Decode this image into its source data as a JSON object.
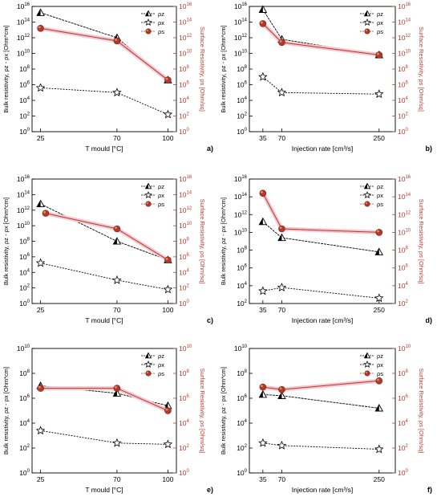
{
  "colors": {
    "series_z": "#000000",
    "series_x": "#000000",
    "series_s": "#b8392a",
    "right_axis": "#c0392b",
    "highlight": "#f3c7cf"
  },
  "chart_data": [
    {
      "type": "line",
      "panel_label": "a)",
      "xlabel": "T mould [°C]",
      "x_ticks": [
        25,
        70,
        100
      ],
      "xlim": [
        20,
        105
      ],
      "ylabel_left": "Bulk resistivity, ρz - ρx [Ohm*cm]",
      "ylabel_right": "Surface Resistivity, ρs [Ohm/sq]",
      "y_log": true,
      "y_ticks": [
        "10^0",
        "10^2",
        "10^4",
        "10^6",
        "10^8",
        "10^10",
        "10^12",
        "10^14",
        "10^16"
      ],
      "ylim_exp": [
        0,
        16
      ],
      "legend": [
        "ρz",
        "ρx",
        "ρs"
      ],
      "series": [
        {
          "name": "ρz",
          "marker": "triangle",
          "x": [
            25,
            70,
            100
          ],
          "log10_values": [
            15.2,
            12.0,
            6.6
          ]
        },
        {
          "name": "ρx",
          "marker": "star",
          "x": [
            25,
            70,
            100
          ],
          "log10_values": [
            5.6,
            5.0,
            2.2
          ]
        },
        {
          "name": "ρs",
          "marker": "circle",
          "x": [
            25,
            70,
            100
          ],
          "log10_values": [
            13.2,
            11.6,
            6.6
          ]
        }
      ]
    },
    {
      "type": "line",
      "panel_label": "b)",
      "xlabel": "Injection rate [cm³/s]",
      "x_ticks": [
        35,
        70,
        250
      ],
      "xlim": [
        10,
        280
      ],
      "ylabel_left": "Bulk resistivity, ρz - ρx [Ohm*cm]",
      "ylabel_right": "Surface Resistivity, ρs [Ohm/sq]",
      "y_log": true,
      "y_ticks": [
        "10^0",
        "10^2",
        "10^4",
        "10^6",
        "10^8",
        "10^10",
        "10^12",
        "10^14",
        "10^16"
      ],
      "ylim_exp": [
        0,
        16
      ],
      "legend": [
        "ρz",
        "ρx",
        "ρs"
      ],
      "series": [
        {
          "name": "ρz",
          "marker": "triangle",
          "x": [
            35,
            70,
            250
          ],
          "log10_values": [
            15.6,
            11.8,
            9.8
          ]
        },
        {
          "name": "ρx",
          "marker": "star",
          "x": [
            35,
            70,
            250
          ],
          "log10_values": [
            7.0,
            5.0,
            4.8
          ]
        },
        {
          "name": "ρs",
          "marker": "circle",
          "x": [
            35,
            70,
            250
          ],
          "log10_values": [
            13.8,
            11.4,
            9.8
          ]
        }
      ]
    },
    {
      "type": "line",
      "panel_label": "c)",
      "xlabel": "T mould [°C]",
      "x_ticks": [
        25,
        70,
        100
      ],
      "xlim": [
        20,
        105
      ],
      "ylabel_left": "Bulk resistivity, ρz - ρx [Ohm*cm]",
      "ylabel_right": "Surface Resistivity, ρs [Ohm/sq]",
      "y_log": true,
      "y_ticks": [
        "10^0",
        "10^2",
        "10^4",
        "10^6",
        "10^8",
        "10^10",
        "10^12",
        "10^14",
        "10^16"
      ],
      "ylim_exp": [
        0,
        16
      ],
      "legend": [
        "ρz",
        "ρx",
        "ρs"
      ],
      "series": [
        {
          "name": "ρz",
          "marker": "triangle",
          "x": [
            25,
            70,
            100
          ],
          "log10_values": [
            12.8,
            8.0,
            5.6
          ]
        },
        {
          "name": "ρx",
          "marker": "star",
          "x": [
            25,
            70,
            100
          ],
          "log10_values": [
            5.2,
            3.0,
            1.8
          ]
        },
        {
          "name": "ρs",
          "marker": "circle",
          "x": [
            28,
            70,
            100
          ],
          "log10_values": [
            11.6,
            9.6,
            5.6
          ]
        }
      ]
    },
    {
      "type": "line",
      "panel_label": "d)",
      "xlabel": "Injection rate [cm³/s]",
      "x_ticks": [
        35,
        70,
        250
      ],
      "xlim": [
        10,
        280
      ],
      "ylabel_left": "Bulk resistivity, ρz - ρx [Ohm*cm]",
      "ylabel_right": "Surface Resistivity, ρs [Ohm/sq]",
      "y_log": true,
      "y_ticks": [
        "10^2",
        "10^4",
        "10^6",
        "10^8",
        "10^10",
        "10^12",
        "10^14",
        "10^16"
      ],
      "ylim_exp": [
        2,
        16
      ],
      "legend": [
        "ρz",
        "ρx",
        "ρs"
      ],
      "series": [
        {
          "name": "ρz",
          "marker": "triangle",
          "x": [
            35,
            70,
            250
          ],
          "log10_values": [
            11.2,
            9.4,
            7.8
          ]
        },
        {
          "name": "ρx",
          "marker": "star",
          "x": [
            35,
            70,
            250
          ],
          "log10_values": [
            3.4,
            3.8,
            2.6
          ]
        },
        {
          "name": "ρs",
          "marker": "circle",
          "x": [
            35,
            70,
            250
          ],
          "log10_values": [
            14.4,
            10.4,
            10.0
          ]
        }
      ]
    },
    {
      "type": "line",
      "panel_label": "e)",
      "xlabel": "T mould [°C]",
      "x_ticks": [
        25,
        70,
        100
      ],
      "xlim": [
        20,
        105
      ],
      "ylabel_left": "Bulk resistivity, ρz - ρx [Ohm*cm]",
      "ylabel_right": "Surface Resistivity, ρs [Ohm/sq]",
      "y_log": true,
      "y_ticks": [
        "10^0",
        "10^2",
        "10^4",
        "10^6",
        "10^8",
        "10^10"
      ],
      "ylim_exp": [
        0,
        10
      ],
      "legend": [
        "ρz",
        "ρx",
        "ρs"
      ],
      "series": [
        {
          "name": "ρz",
          "marker": "triangle",
          "x": [
            25,
            70,
            100
          ],
          "log10_values": [
            7.0,
            6.4,
            5.4
          ]
        },
        {
          "name": "ρx",
          "marker": "star",
          "x": [
            25,
            70,
            100
          ],
          "log10_values": [
            3.4,
            2.4,
            2.3
          ]
        },
        {
          "name": "ρs",
          "marker": "circle",
          "x": [
            25,
            70,
            100
          ],
          "log10_values": [
            6.8,
            6.8,
            5.0
          ]
        }
      ]
    },
    {
      "type": "line",
      "panel_label": "f)",
      "xlabel": "Injection rate [cm³/s]",
      "x_ticks": [
        35,
        70,
        250
      ],
      "xlim": [
        10,
        280
      ],
      "ylabel_left": "Bulk resistivity, ρz - ρx [Ohm*cm]",
      "ylabel_right": "Surface Resistivity, ρs [Ohm/sq]",
      "y_log": true,
      "y_ticks": [
        "10^0",
        "10^2",
        "10^4",
        "10^6",
        "10^8",
        "10^10"
      ],
      "ylim_exp": [
        0,
        10
      ],
      "legend": [
        "ρz",
        "ρx",
        "ρs"
      ],
      "series": [
        {
          "name": "ρz",
          "marker": "triangle",
          "x": [
            35,
            70,
            250
          ],
          "log10_values": [
            6.3,
            6.2,
            5.2
          ]
        },
        {
          "name": "ρx",
          "marker": "star",
          "x": [
            35,
            70,
            250
          ],
          "log10_values": [
            2.4,
            2.2,
            1.9
          ]
        },
        {
          "name": "ρs",
          "marker": "circle",
          "x": [
            35,
            70,
            250
          ],
          "log10_values": [
            6.9,
            6.7,
            7.4
          ]
        }
      ]
    }
  ]
}
